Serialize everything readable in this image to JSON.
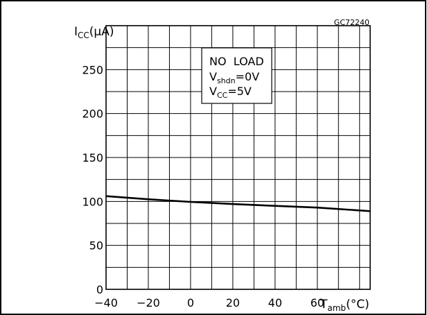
{
  "figure_id": "GC72240",
  "chart_data": {
    "type": "line",
    "ylabel": {
      "main": "I",
      "sub": "CC",
      "unit": "(μA)"
    },
    "xlabel": {
      "main": "T",
      "sub": "amb",
      "unit": "(°C)"
    },
    "xlim": [
      -40,
      85
    ],
    "ylim": [
      0,
      300
    ],
    "x_ticks": [
      -40,
      -20,
      0,
      20,
      40,
      60
    ],
    "y_ticks": [
      0,
      50,
      100,
      150,
      200,
      250
    ],
    "grid": true,
    "annotation": {
      "line1": "NO  LOAD",
      "line2": {
        "main": "V",
        "sub": "shdn",
        "rest": "=0V"
      },
      "line3": {
        "main": "V",
        "sub": "CC",
        "rest": "=5V"
      }
    },
    "series": [
      {
        "x": [
          -40,
          -20,
          0,
          20,
          40,
          60,
          85
        ],
        "y": [
          106,
          102.5,
          99.5,
          97,
          95,
          93,
          89
        ]
      }
    ]
  }
}
